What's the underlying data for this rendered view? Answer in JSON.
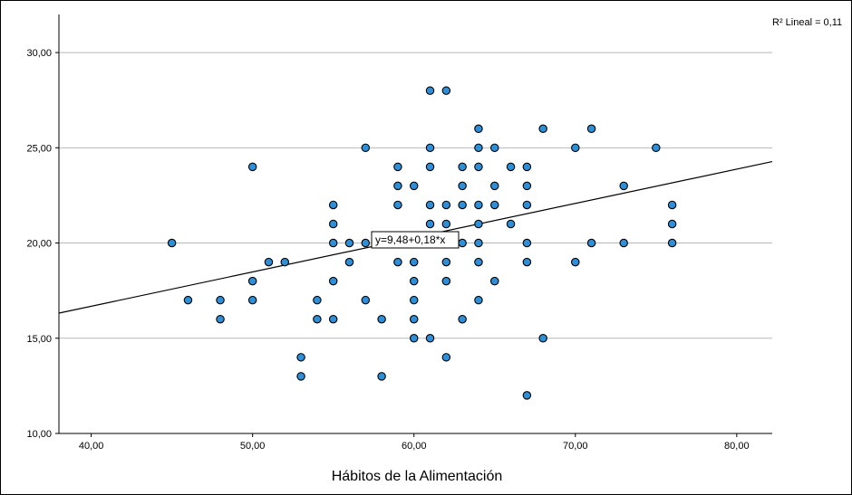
{
  "chart_data": {
    "type": "scatter",
    "xlabel": "Hábitos de la Alimentación",
    "ylabel": "",
    "xlim": [
      38,
      82.2
    ],
    "ylim": [
      10,
      32
    ],
    "x_ticks": [
      "40,00",
      "50,00",
      "60,00",
      "70,00",
      "80,00"
    ],
    "x_tick_values": [
      40,
      50,
      60,
      70,
      80
    ],
    "y_ticks": [
      "10,00",
      "15,00",
      "20,00",
      "25,00",
      "30,00"
    ],
    "y_tick_values": [
      10,
      15,
      20,
      25,
      30
    ],
    "grid": "horizontal",
    "point_color": "#2c8fd8",
    "line_color": "#000000",
    "fit_line": {
      "intercept": 9.48,
      "slope": 0.18
    },
    "fit_label": "y=9,48+0,18*x",
    "r2_label": "R² Lineal = 0,11",
    "points": [
      [
        45,
        20
      ],
      [
        46,
        17
      ],
      [
        48,
        17
      ],
      [
        48,
        16
      ],
      [
        50,
        24
      ],
      [
        50,
        18
      ],
      [
        50,
        17
      ],
      [
        51,
        19
      ],
      [
        52,
        19
      ],
      [
        53,
        14
      ],
      [
        53,
        13
      ],
      [
        54,
        17
      ],
      [
        54,
        16
      ],
      [
        55,
        22
      ],
      [
        55,
        21
      ],
      [
        55,
        20
      ],
      [
        55,
        18
      ],
      [
        55,
        16
      ],
      [
        56,
        20
      ],
      [
        56,
        19
      ],
      [
        57,
        25
      ],
      [
        57,
        20
      ],
      [
        57,
        17
      ],
      [
        58,
        16
      ],
      [
        58,
        13
      ],
      [
        59,
        24
      ],
      [
        59,
        23
      ],
      [
        59,
        22
      ],
      [
        59,
        19
      ],
      [
        60,
        23
      ],
      [
        60,
        19
      ],
      [
        60,
        18
      ],
      [
        60,
        17
      ],
      [
        60,
        16
      ],
      [
        60,
        15
      ],
      [
        61,
        28
      ],
      [
        61,
        25
      ],
      [
        61,
        24
      ],
      [
        61,
        22
      ],
      [
        61,
        21
      ],
      [
        61,
        15
      ],
      [
        62,
        28
      ],
      [
        62,
        22
      ],
      [
        62,
        21
      ],
      [
        62,
        19
      ],
      [
        62,
        18
      ],
      [
        62,
        14
      ],
      [
        63,
        24
      ],
      [
        63,
        23
      ],
      [
        63,
        22
      ],
      [
        63,
        20
      ],
      [
        63,
        16
      ],
      [
        64,
        26
      ],
      [
        64,
        25
      ],
      [
        64,
        24
      ],
      [
        64,
        22
      ],
      [
        64,
        21
      ],
      [
        64,
        20
      ],
      [
        64,
        19
      ],
      [
        64,
        17
      ],
      [
        65,
        25
      ],
      [
        65,
        23
      ],
      [
        65,
        22
      ],
      [
        65,
        18
      ],
      [
        66,
        24
      ],
      [
        66,
        21
      ],
      [
        67,
        24
      ],
      [
        67,
        23
      ],
      [
        67,
        22
      ],
      [
        67,
        20
      ],
      [
        67,
        19
      ],
      [
        67,
        12
      ],
      [
        68,
        26
      ],
      [
        68,
        15
      ],
      [
        70,
        25
      ],
      [
        70,
        19
      ],
      [
        71,
        26
      ],
      [
        71,
        20
      ],
      [
        73,
        23
      ],
      [
        73,
        20
      ],
      [
        75,
        25
      ],
      [
        76,
        22
      ],
      [
        76,
        21
      ],
      [
        76,
        20
      ]
    ]
  }
}
